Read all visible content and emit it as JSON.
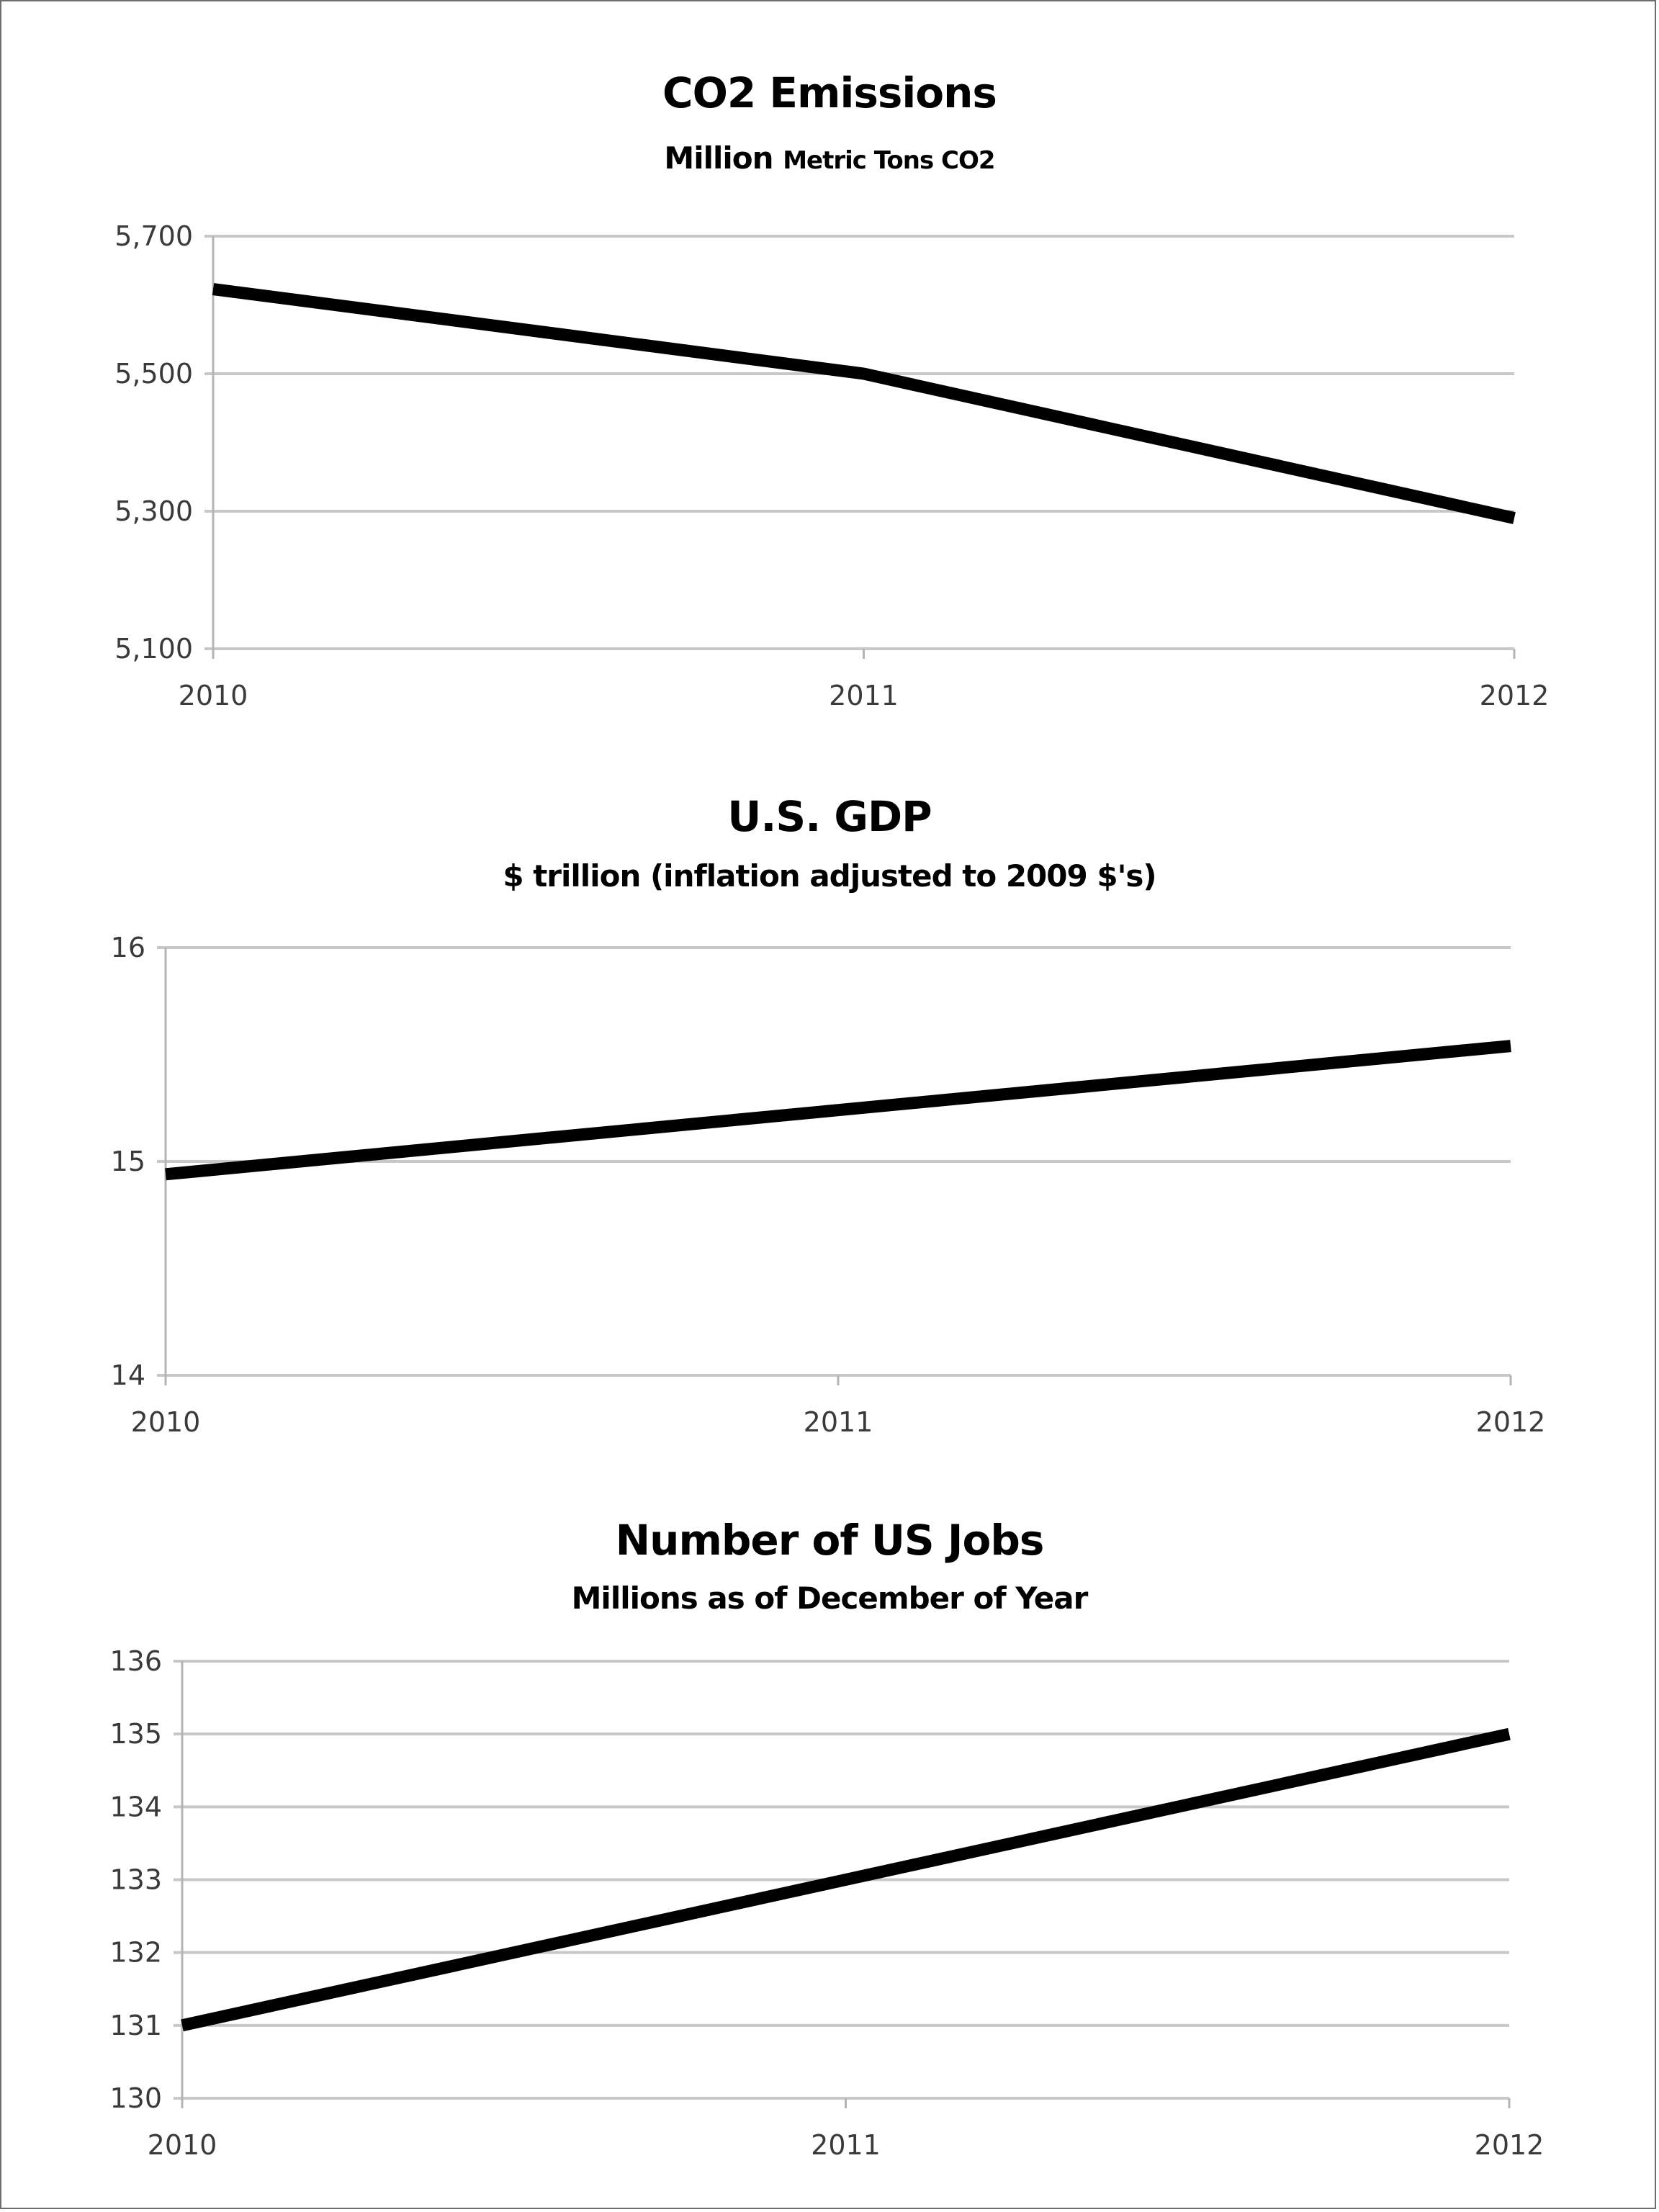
{
  "chart_data": [
    {
      "type": "line",
      "title": "CO2 Emissions",
      "subtitle_main": "Million",
      "subtitle_small": "Metric Tons CO2",
      "xlabel": "",
      "ylabel": "",
      "categories": [
        "2010",
        "2011",
        "2012"
      ],
      "series": [
        {
          "name": "CO2 Emissions",
          "values": [
            5623,
            5500,
            5290
          ],
          "color": "#000000"
        }
      ],
      "ylim": [
        5100,
        5700
      ],
      "yticks": [
        5100,
        5300,
        5500,
        5700
      ],
      "ytick_labels": [
        "5,100",
        "5,300",
        "5,500",
        "5,700"
      ],
      "grid": true,
      "legend": "none"
    },
    {
      "type": "line",
      "title": "U.S. GDP",
      "subtitle_main": "$ trillion (inflation adjusted to 2009 $'s)",
      "subtitle_small": "",
      "xlabel": "",
      "ylabel": "",
      "categories": [
        "2010",
        "2011",
        "2012"
      ],
      "series": [
        {
          "name": "U.S. GDP",
          "values": [
            14.94,
            15.24,
            15.54
          ],
          "color": "#000000"
        }
      ],
      "ylim": [
        14,
        16
      ],
      "yticks": [
        14,
        15,
        16
      ],
      "ytick_labels": [
        "14",
        "15",
        "16"
      ],
      "grid": true,
      "legend": "none"
    },
    {
      "type": "line",
      "title": "Number of US Jobs",
      "subtitle_main": "Millions as of December of Year",
      "subtitle_small": "",
      "xlabel": "",
      "ylabel": "",
      "categories": [
        "2010",
        "2011",
        "2012"
      ],
      "series": [
        {
          "name": "Number of US Jobs",
          "values": [
            131.0,
            133.0,
            135.0
          ],
          "color": "#000000"
        }
      ],
      "ylim": [
        130,
        136
      ],
      "yticks": [
        130,
        131,
        132,
        133,
        134,
        135,
        136
      ],
      "ytick_labels": [
        "130",
        "131",
        "132",
        "133",
        "134",
        "135",
        "136"
      ],
      "grid": true,
      "legend": "none"
    }
  ],
  "colors": {
    "line": "#000000",
    "grid": "#c8c8c8",
    "axis": "#b4b4b4",
    "tick_text": "#3a3a3a",
    "frame": "#6e6e6e"
  }
}
